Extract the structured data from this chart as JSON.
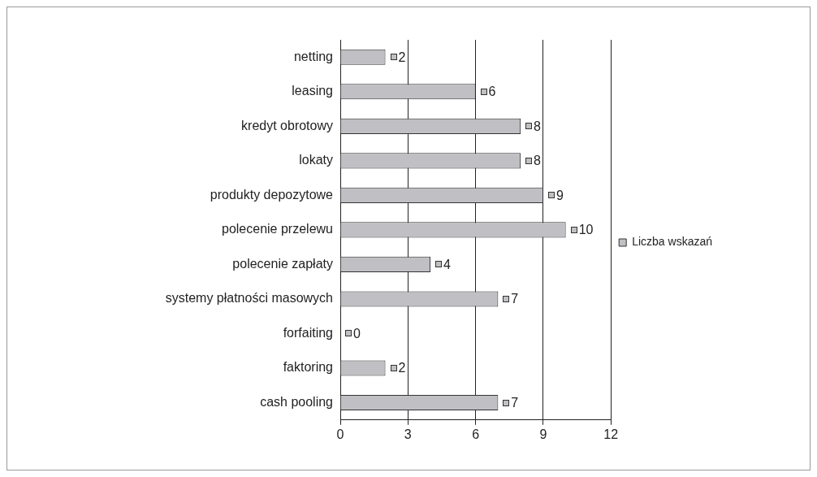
{
  "chart_data": {
    "type": "bar",
    "orientation": "horizontal",
    "categories": [
      "netting",
      "leasing",
      "kredyt obrotowy",
      "lokaty",
      "produkty depozytowe",
      "polecenie przelewu",
      "polecenie zapłaty",
      "systemy płatności masowych",
      "forfaiting",
      "faktoring",
      "cash pooling"
    ],
    "series": [
      {
        "name": "Liczba wskazań",
        "color": "#c0c0c4",
        "values": [
          2,
          6,
          8,
          8,
          9,
          10,
          4,
          7,
          0,
          2,
          7
        ]
      }
    ],
    "xlim": [
      0,
      12
    ],
    "xticks": [
      0,
      3,
      6,
      9,
      12
    ],
    "grid": "x",
    "legend": "right",
    "data_labels": true
  }
}
